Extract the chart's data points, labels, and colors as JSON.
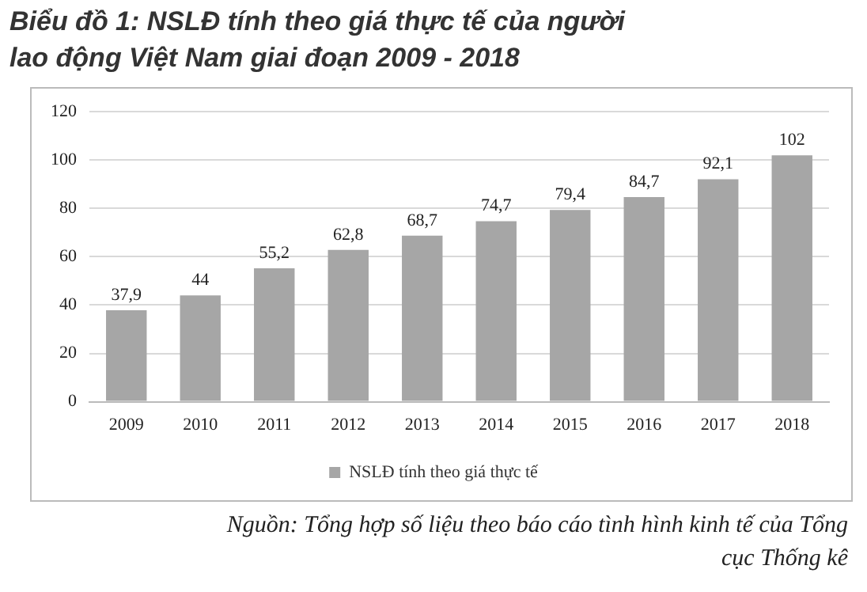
{
  "chart_data": {
    "type": "bar",
    "title": "Biểu đồ 1: NSLĐ tính theo giá thực tế của người lao động Việt Nam giai đoạn 2009 - 2018",
    "categories": [
      "2009",
      "2010",
      "2011",
      "2012",
      "2013",
      "2014",
      "2015",
      "2016",
      "2017",
      "2018"
    ],
    "series": [
      {
        "name": "NSLĐ tính theo giá thực tế",
        "color": "#a6a6a6",
        "values": [
          37.9,
          44,
          55.2,
          62.8,
          68.7,
          74.7,
          79.4,
          84.7,
          92.1,
          102
        ]
      }
    ],
    "value_labels": [
      "37,9",
      "44",
      "55,2",
      "62,8",
      "68,7",
      "74,7",
      "79,4",
      "84,7",
      "92,1",
      "102"
    ],
    "ylim": [
      0,
      120
    ],
    "yticks": [
      0,
      20,
      40,
      60,
      80,
      100,
      120
    ],
    "grid": "y",
    "legend": "bottom",
    "annotations": [
      "Nguồn: Tổng hợp số liệu theo báo cáo tình hình kinh tế của Tổng cục Thống kê"
    ]
  }
}
